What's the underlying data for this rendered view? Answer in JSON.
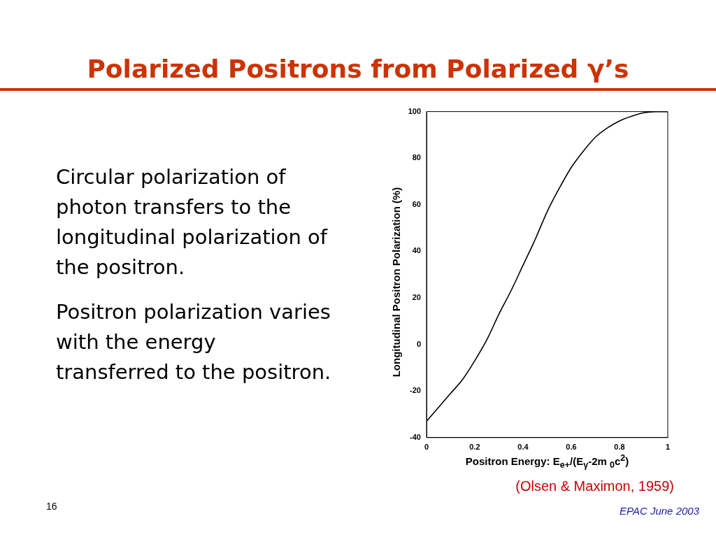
{
  "chart_data": {
    "type": "line",
    "title": "Polarized Positrons from Polarized γ’s",
    "xlabel": "Positron Energy: E$_{e+}$/(E$_{γ}$-2m $_{0}$c$^{2}$)",
    "ylabel": "Longitudinal Positron Polarization (%)",
    "x": [
      0,
      0.05,
      0.1,
      0.15,
      0.2,
      0.25,
      0.3,
      0.35,
      0.4,
      0.45,
      0.5,
      0.55,
      0.6,
      0.65,
      0.7,
      0.75,
      0.8,
      0.85,
      0.9,
      0.95,
      1
    ],
    "series": [
      {
        "color": "#000000",
        "values": [
          -33,
          -27,
          -21,
          -15,
          -7,
          2,
          13,
          23,
          34,
          45,
          57,
          67,
          76,
          83,
          89,
          93,
          96,
          98,
          99.5,
          100,
          100
        ]
      }
    ],
    "xlim": [
      0,
      1
    ],
    "xticks": [
      0,
      0.2,
      0.4,
      0.6,
      0.8,
      1
    ],
    "ylim": [
      -40,
      100
    ],
    "yticks": [
      -40,
      -20,
      0,
      20,
      40,
      60,
      80,
      100
    ],
    "grid": false,
    "legend": false,
    "marker": "none",
    "line_style": "solid",
    "annotations": [
      "Circular polarization of photon transfers to the longitudinal polarization of the positron.",
      "Positron polarization varies with the energy transferred to the positron.",
      "(Olsen & Maximon, 1959)",
      "16",
      "EPAC June 2003"
    ]
  }
}
